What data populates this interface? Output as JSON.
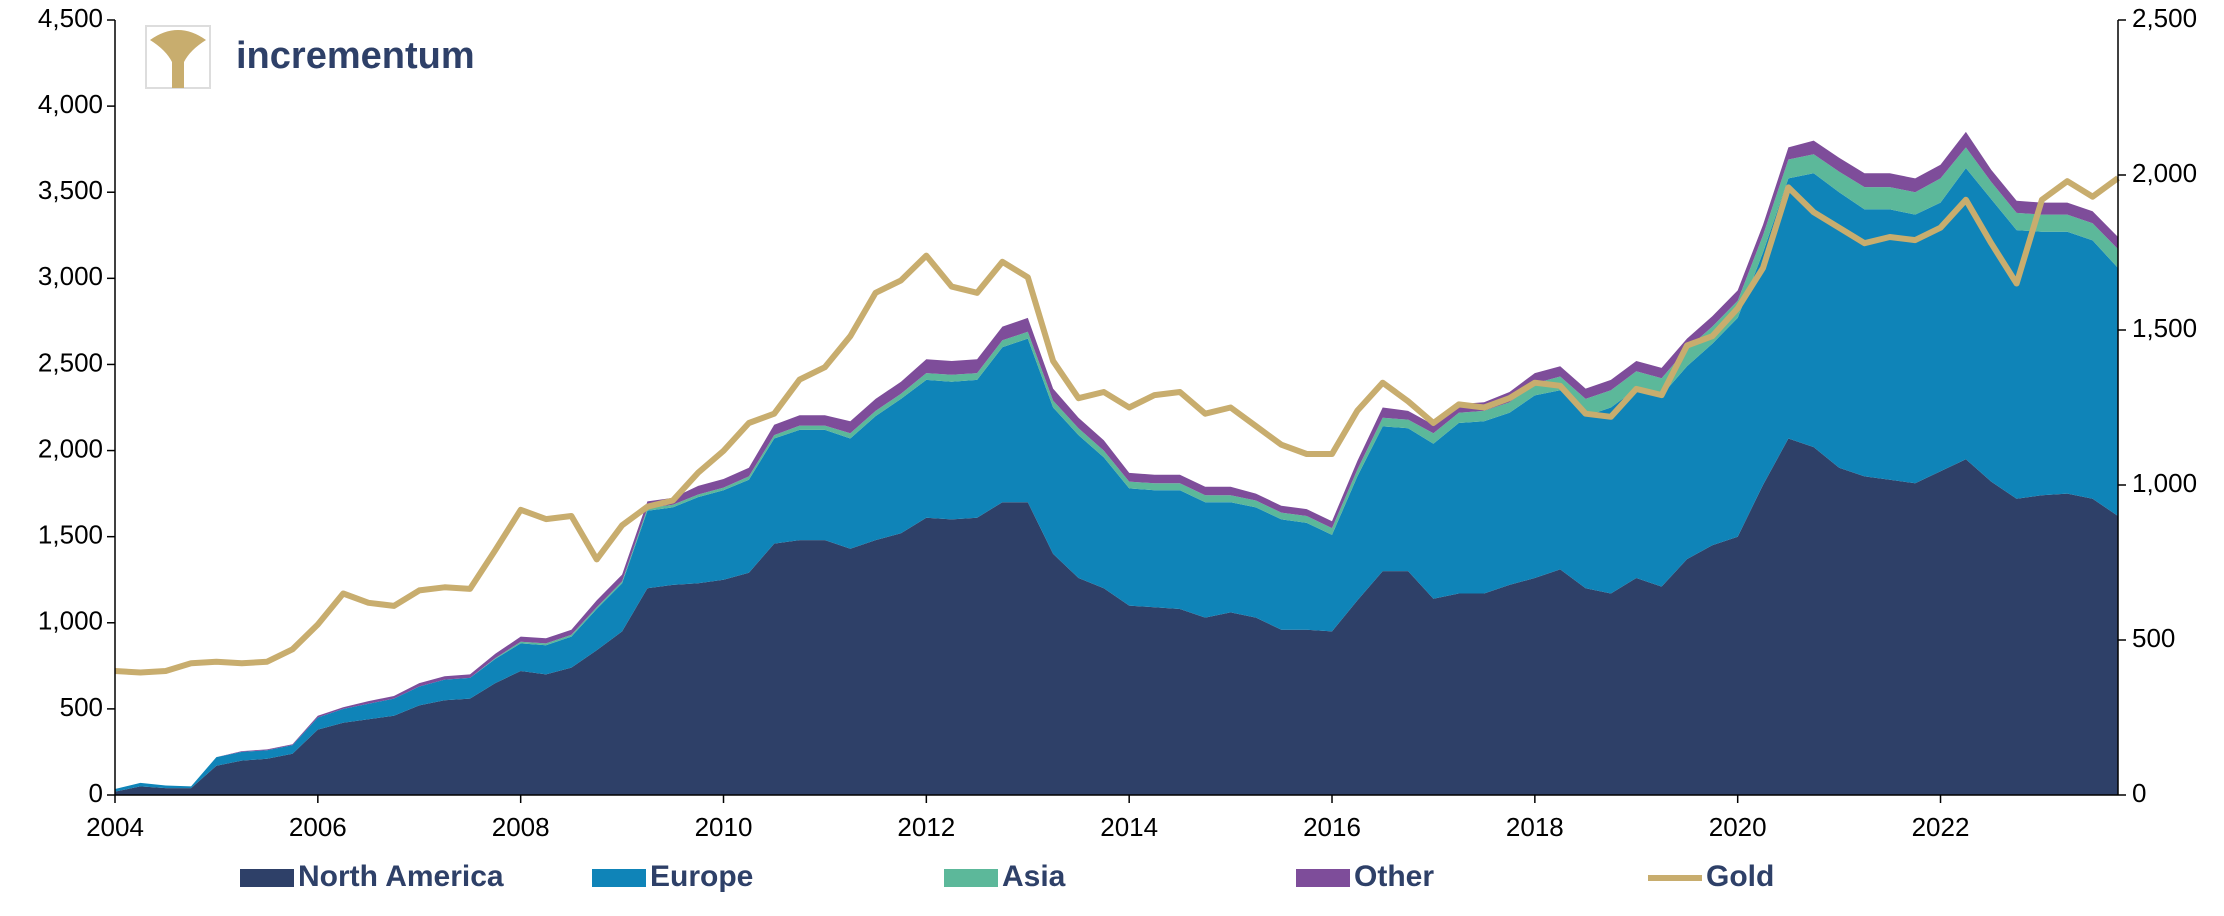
{
  "chart_data": {
    "type": "stacked_area_line",
    "logo_text": "incrementum",
    "x": [
      2004,
      2004.25,
      2004.5,
      2004.75,
      2005,
      2005.25,
      2005.5,
      2005.75,
      2006,
      2006.25,
      2006.5,
      2006.75,
      2007,
      2007.25,
      2007.5,
      2007.75,
      2008,
      2008.25,
      2008.5,
      2008.75,
      2009,
      2009.25,
      2009.5,
      2009.75,
      2010,
      2010.25,
      2010.5,
      2010.75,
      2011,
      2011.25,
      2011.5,
      2011.75,
      2012,
      2012.25,
      2012.5,
      2012.75,
      2013,
      2013.25,
      2013.5,
      2013.75,
      2014,
      2014.25,
      2014.5,
      2014.75,
      2015,
      2015.25,
      2015.5,
      2015.75,
      2016,
      2016.25,
      2016.5,
      2016.75,
      2017,
      2017.25,
      2017.5,
      2017.75,
      2018,
      2018.25,
      2018.5,
      2018.75,
      2019,
      2019.25,
      2019.5,
      2019.75,
      2020,
      2020.25,
      2020.5,
      2020.75,
      2021,
      2021.25,
      2021.5,
      2021.75,
      2022,
      2022.25,
      2022.5,
      2022.75,
      2023,
      2023.25,
      2023.5,
      2023.75
    ],
    "xlim": [
      2004,
      2023.75
    ],
    "xticks": [
      2004,
      2006,
      2008,
      2010,
      2012,
      2014,
      2016,
      2018,
      2020,
      2022
    ],
    "ylim": [
      0,
      4500
    ],
    "yticks": [
      0,
      500,
      {
        "value": 1000,
        "label": "1,000"
      },
      {
        "value": 1500,
        "label": "1,500"
      },
      {
        "value": 2000,
        "label": "2,000"
      },
      {
        "value": 2500,
        "label": "2,500"
      },
      {
        "value": 3000,
        "label": "3,000"
      },
      {
        "value": 3500,
        "label": "3,500"
      },
      {
        "value": 4000,
        "label": "4,000"
      },
      {
        "value": 4500,
        "label": "4,500"
      }
    ],
    "y2lim": [
      0,
      2500
    ],
    "y2ticks": [
      0,
      500,
      {
        "value": 1000,
        "label": "1,000"
      },
      {
        "value": 1500,
        "label": "1,500"
      },
      {
        "value": 2000,
        "label": "2,000"
      },
      {
        "value": 2500,
        "label": "2,500"
      }
    ],
    "grid": false,
    "series": [
      {
        "name": "North America",
        "color": "#2e4068",
        "kind": "area",
        "values": [
          20,
          50,
          40,
          40,
          170,
          200,
          210,
          240,
          380,
          420,
          440,
          460,
          520,
          550,
          560,
          650,
          720,
          700,
          740,
          840,
          950,
          1200,
          1220,
          1230,
          1250,
          1290,
          1460,
          1480,
          1480,
          1430,
          1480,
          1520,
          1610,
          1600,
          1610,
          1700,
          1700,
          1400,
          1260,
          1200,
          1100,
          1090,
          1080,
          1030,
          1060,
          1030,
          960,
          960,
          950,
          1130,
          1300,
          1300,
          1140,
          1170,
          1170,
          1220,
          1260,
          1310,
          1200,
          1170,
          1260,
          1210,
          1370,
          1450,
          1500,
          1800,
          2070,
          2020,
          1900,
          1850,
          1830,
          1810,
          1880,
          1950,
          1820,
          1720,
          1740,
          1750,
          1720,
          1620
        ]
      },
      {
        "name": "Europe",
        "color": "#0f84b8",
        "kind": "area",
        "values": [
          15,
          20,
          15,
          10,
          50,
          50,
          50,
          50,
          70,
          80,
          90,
          100,
          110,
          120,
          120,
          140,
          160,
          170,
          180,
          240,
          280,
          450,
          450,
          500,
          520,
          540,
          610,
          640,
          640,
          640,
          720,
          780,
          800,
          800,
          800,
          900,
          950,
          850,
          830,
          760,
          680,
          680,
          690,
          670,
          640,
          640,
          640,
          620,
          560,
          720,
          840,
          830,
          900,
          990,
          1000,
          1000,
          1060,
          1040,
          1000,
          1080,
          1100,
          1110,
          1120,
          1170,
          1270,
          1350,
          1510,
          1590,
          1600,
          1550,
          1570,
          1560,
          1560,
          1690,
          1640,
          1560,
          1530,
          1520,
          1500,
          1440
        ]
      },
      {
        "name": "Asia",
        "color": "#5cb89a",
        "kind": "area",
        "values": [
          0,
          0,
          0,
          0,
          0,
          0,
          0,
          0,
          0,
          0,
          0,
          0,
          0,
          0,
          0,
          5,
          10,
          10,
          10,
          10,
          10,
          15,
          15,
          15,
          15,
          20,
          20,
          25,
          25,
          30,
          30,
          30,
          40,
          40,
          40,
          40,
          40,
          40,
          40,
          40,
          40,
          40,
          40,
          40,
          40,
          40,
          40,
          40,
          40,
          40,
          50,
          50,
          60,
          60,
          60,
          60,
          70,
          80,
          100,
          100,
          100,
          100,
          100,
          100,
          100,
          100,
          110,
          110,
          120,
          130,
          130,
          130,
          140,
          120,
          100,
          100,
          100,
          100,
          100,
          110
        ]
      },
      {
        "name": "Other",
        "color": "#7e4d9a",
        "kind": "area",
        "values": [
          0,
          0,
          0,
          0,
          0,
          5,
          5,
          5,
          10,
          10,
          15,
          15,
          20,
          20,
          20,
          25,
          30,
          30,
          30,
          40,
          40,
          40,
          40,
          50,
          50,
          50,
          60,
          60,
          60,
          70,
          70,
          70,
          80,
          80,
          80,
          80,
          80,
          70,
          60,
          60,
          50,
          50,
          50,
          50,
          50,
          40,
          40,
          40,
          40,
          50,
          60,
          50,
          50,
          50,
          50,
          60,
          60,
          60,
          60,
          60,
          60,
          60,
          60,
          60,
          60,
          60,
          70,
          80,
          80,
          80,
          80,
          80,
          80,
          90,
          70,
          70,
          70,
          70,
          70,
          70
        ]
      },
      {
        "name": "Gold",
        "color": "#c8ad6e",
        "kind": "line",
        "axis": "y2",
        "values": [
          400,
          395,
          400,
          425,
          430,
          425,
          430,
          470,
          550,
          650,
          620,
          610,
          660,
          670,
          665,
          790,
          920,
          890,
          900,
          760,
          870,
          930,
          950,
          1040,
          1110,
          1200,
          1230,
          1340,
          1380,
          1480,
          1620,
          1660,
          1740,
          1640,
          1620,
          1720,
          1670,
          1400,
          1280,
          1300,
          1250,
          1290,
          1300,
          1230,
          1250,
          1190,
          1130,
          1100,
          1100,
          1240,
          1330,
          1270,
          1200,
          1260,
          1250,
          1280,
          1330,
          1320,
          1230,
          1220,
          1310,
          1290,
          1450,
          1480,
          1570,
          1700,
          1960,
          1880,
          1830,
          1780,
          1800,
          1790,
          1830,
          1920,
          1780,
          1650,
          1920,
          1980,
          1930,
          1990
        ]
      }
    ]
  }
}
